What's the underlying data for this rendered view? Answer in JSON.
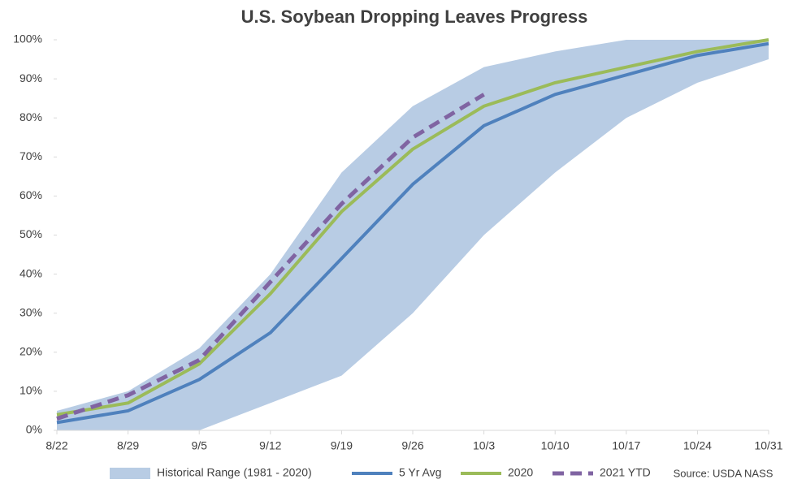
{
  "chart_data": {
    "type": "line",
    "title": "U.S. Soybean Dropping Leaves Progress",
    "categories": [
      "8/22",
      "8/29",
      "9/5",
      "9/12",
      "9/19",
      "9/26",
      "10/3",
      "10/10",
      "10/17",
      "10/24",
      "10/31"
    ],
    "series": [
      {
        "name": "Historical Range (1981 - 2020)",
        "color": "#b8cce4",
        "low": [
          0,
          0,
          0,
          7,
          14,
          30,
          50,
          66,
          80,
          89,
          95
        ],
        "high": [
          5,
          10,
          21,
          40,
          66,
          83,
          93,
          97,
          100,
          100,
          100
        ]
      },
      {
        "name": "5 Yr Avg",
        "color": "#4f81bd",
        "values": [
          2,
          5,
          13,
          25,
          44,
          63,
          78,
          86,
          91,
          96,
          99
        ]
      },
      {
        "name": "2020",
        "color": "#9bbb59",
        "values": [
          4,
          7,
          17,
          35,
          56,
          72,
          83,
          89,
          93,
          97,
          100
        ]
      },
      {
        "name": "2021 YTD",
        "color": "#8064a2",
        "dashed": true,
        "values": [
          3,
          9,
          18,
          38,
          58,
          75,
          86,
          null,
          null,
          null,
          null
        ]
      }
    ],
    "ylim": [
      0,
      100
    ],
    "yticks": [
      {
        "value": 0,
        "label": "0%"
      },
      {
        "value": 10,
        "label": "10%"
      },
      {
        "value": 20,
        "label": "20%"
      },
      {
        "value": 30,
        "label": "30%"
      },
      {
        "value": 40,
        "label": "40%"
      },
      {
        "value": 50,
        "label": "50%"
      },
      {
        "value": 60,
        "label": "60%"
      },
      {
        "value": 70,
        "label": "70%"
      },
      {
        "value": 80,
        "label": "80%"
      },
      {
        "value": 90,
        "label": "90%"
      },
      {
        "value": 100,
        "label": "100%"
      }
    ],
    "legend": "bottom",
    "source": "Source: USDA NASS"
  }
}
